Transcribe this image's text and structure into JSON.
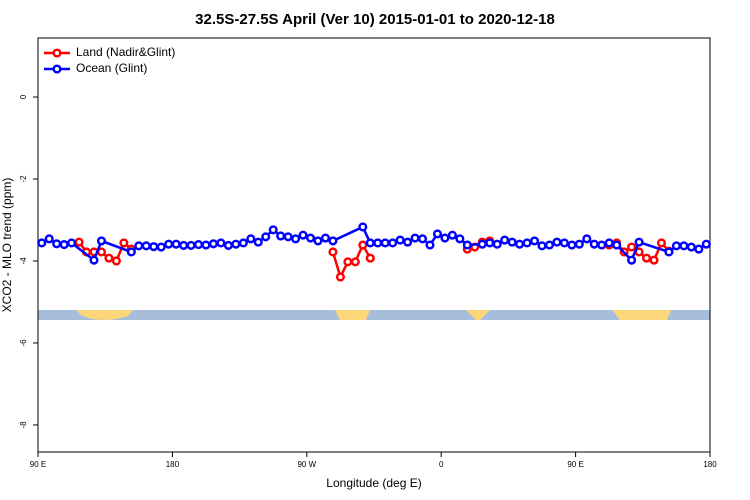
{
  "chart_data": {
    "type": "line",
    "title": "32.5S-27.5S April (Ver 10)   2015-01-01 to 2020-12-18",
    "xlabel": "Longitude (deg E)",
    "ylabel": "XCO2 - MLO trend (ppm)",
    "xlim": [
      90,
      540
    ],
    "ylim": [
      -8.66,
      1.44
    ],
    "xticks": [
      {
        "value": 90,
        "label": "90 E"
      },
      {
        "value": 180,
        "label": "180"
      },
      {
        "value": 270,
        "label": "90 W"
      },
      {
        "value": 360,
        "label": "0"
      },
      {
        "value": 450,
        "label": "90 E"
      },
      {
        "value": 540,
        "label": "180"
      }
    ],
    "yticks": [
      0,
      -2,
      -4,
      -6,
      -8
    ],
    "legend": "top-left",
    "series": [
      {
        "name": "Land (Nadir&Glint)",
        "color": "#ff0000",
        "x": [
          117.5,
          122.5,
          127.5,
          132.5,
          137.5,
          142.5,
          147.5,
          152.5,
          null,
          287.5,
          292.5,
          297.5,
          302.5,
          307.5,
          312.5,
          null,
          377.5,
          382.5,
          387.5,
          392.5,
          null,
          472.5,
          477.5,
          482.5,
          487.5,
          492.5,
          497.5,
          502.5,
          507.5,
          512.5
        ],
        "values": [
          -3.54,
          -3.78,
          -3.78,
          -3.78,
          -3.93,
          -4.0,
          -3.56,
          -3.71,
          null,
          -3.78,
          -4.39,
          -4.02,
          -4.02,
          -3.61,
          -3.93,
          null,
          -3.71,
          -3.66,
          -3.54,
          -3.51,
          null,
          -3.61,
          -3.56,
          -3.78,
          -3.66,
          -3.78,
          -3.93,
          -3.98,
          -3.56,
          -3.76
        ]
      },
      {
        "name": "Ocean (Glint)",
        "color": "#0000ff",
        "x": [
          92.5,
          97.5,
          102.5,
          107.5,
          112.5,
          127.5,
          132.5,
          152.5,
          157.5,
          162.5,
          167.5,
          172.5,
          177.5,
          182.5,
          187.5,
          192.5,
          197.5,
          202.5,
          207.5,
          212.5,
          217.5,
          222.5,
          227.5,
          232.5,
          237.5,
          242.5,
          247.5,
          252.5,
          257.5,
          262.5,
          267.5,
          272.5,
          277.5,
          282.5,
          287.5,
          307.5,
          312.5,
          317.5,
          322.5,
          327.5,
          332.5,
          337.5,
          342.5,
          347.5,
          352.5,
          357.5,
          362.5,
          367.5,
          372.5,
          377.5,
          387.5,
          392.5,
          397.5,
          402.5,
          407.5,
          412.5,
          417.5,
          422.5,
          427.5,
          432.5,
          437.5,
          442.5,
          447.5,
          452.5,
          457.5,
          462.5,
          467.5,
          472.5,
          477.5,
          487.5,
          492.5,
          512.5,
          517.5,
          522.5,
          527.5,
          532.5,
          537.5
        ],
        "values": [
          -3.56,
          -3.46,
          -3.58,
          -3.6,
          -3.56,
          -3.98,
          -3.51,
          -3.78,
          -3.63,
          -3.63,
          -3.65,
          -3.66,
          -3.59,
          -3.59,
          -3.62,
          -3.62,
          -3.6,
          -3.61,
          -3.58,
          -3.56,
          -3.62,
          -3.59,
          -3.56,
          -3.46,
          -3.54,
          -3.41,
          -3.24,
          -3.39,
          -3.41,
          -3.46,
          -3.37,
          -3.44,
          -3.51,
          -3.44,
          -3.51,
          -3.17,
          -3.56,
          -3.56,
          -3.56,
          -3.56,
          -3.49,
          -3.54,
          -3.44,
          -3.46,
          -3.61,
          -3.34,
          -3.44,
          -3.37,
          -3.46,
          -3.61,
          -3.59,
          -3.56,
          -3.59,
          -3.49,
          -3.54,
          -3.59,
          -3.56,
          -3.51,
          -3.63,
          -3.61,
          -3.54,
          -3.56,
          -3.61,
          -3.59,
          -3.46,
          -3.59,
          -3.61,
          -3.56,
          -3.61,
          -3.98,
          -3.54,
          -3.78,
          -3.63,
          -3.63,
          -3.66,
          -3.71,
          -3.59
        ]
      }
    ]
  }
}
